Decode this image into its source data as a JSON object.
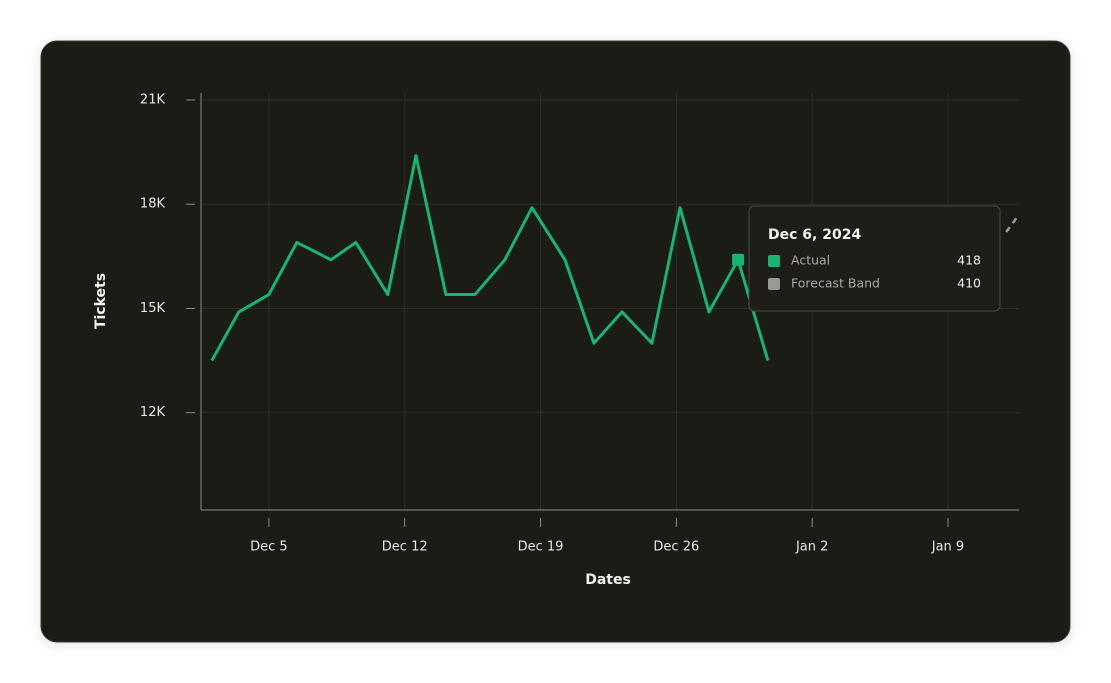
{
  "chart_data": {
    "type": "line",
    "x_label": "Dates",
    "y_label": "Tickets",
    "x": [
      2.06,
      3.45,
      5,
      6.44,
      8.2,
      9.48,
      11.13,
      12.58,
      14.12,
      15.62,
      17.16,
      18.56,
      20.26,
      21.75,
      23.2,
      24.74,
      26.19,
      27.68,
      29.18,
      30.72
    ],
    "series": [
      {
        "name": "Actual",
        "color": "#17b474",
        "values": [
          13500,
          14900,
          15400,
          16900,
          16400,
          16900,
          15400,
          19400,
          15400,
          15400,
          16400,
          17900,
          16400,
          14000,
          14900,
          14000,
          17900,
          14900,
          16400,
          13500
        ]
      },
      {
        "name": "Forecast Band",
        "color": "#9a9a96",
        "x": [
          43.0,
          43.66
        ],
        "values": [
          17200,
          17700
        ]
      }
    ],
    "xlim": [
      1.5,
      43.66
    ],
    "xticks": [
      {
        "value": 5,
        "label": "Dec 5"
      },
      {
        "value": 12,
        "label": "Dec 12"
      },
      {
        "value": 19,
        "label": "Dec 19"
      },
      {
        "value": 26,
        "label": "Dec 26"
      },
      {
        "value": 33,
        "label": "Jan 2"
      },
      {
        "value": 40,
        "label": "Jan 9"
      }
    ],
    "ylim": [
      9200,
      21200
    ],
    "yticks": [
      {
        "value": 12000,
        "label": "12K"
      },
      {
        "value": 15000,
        "label": "15K"
      },
      {
        "value": 18000,
        "label": "18K"
      },
      {
        "value": 21000,
        "label": "21K"
      }
    ],
    "grid": true
  },
  "tooltip": {
    "title": "Dec 6, 2024",
    "rows": [
      {
        "label": "Actual",
        "value": 418,
        "color": "#17b474"
      },
      {
        "label": "Forecast Band",
        "value": 410,
        "color": "#9a9a96"
      }
    ]
  }
}
